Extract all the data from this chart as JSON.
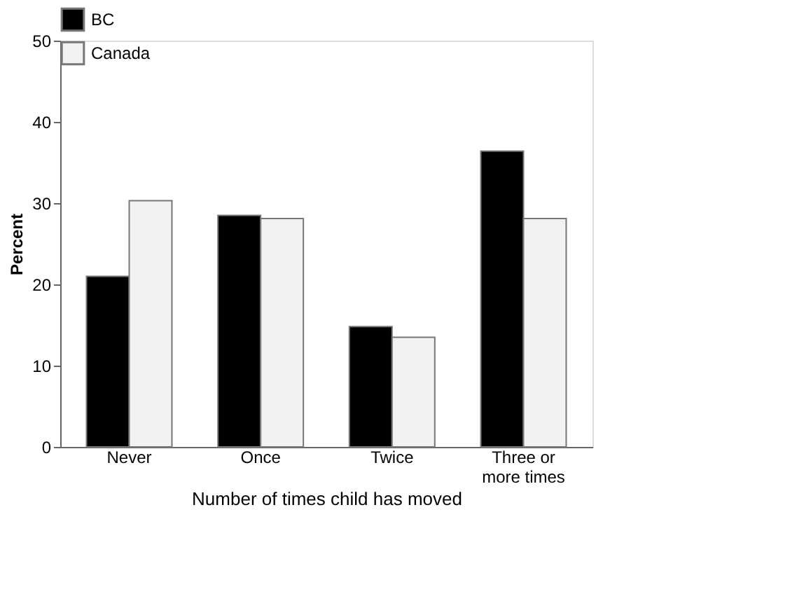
{
  "chart_data": {
    "type": "bar",
    "xlabel": "Number of times child has moved",
    "ylabel": "Percent",
    "categories": [
      "Never",
      "Once",
      "Twice",
      "Three or\nmore times"
    ],
    "series": [
      {
        "name": "BC",
        "color": "#000000",
        "values": [
          21,
          28.5,
          14.8,
          36.4
        ]
      },
      {
        "name": "Canada",
        "color": "#f2f2f2",
        "values": [
          30.3,
          28.1,
          13.5,
          28.1
        ]
      }
    ],
    "ylim": [
      0,
      50
    ],
    "yticks": [
      0,
      10,
      20,
      30,
      40,
      50
    ],
    "grid": false,
    "legend": "top"
  }
}
